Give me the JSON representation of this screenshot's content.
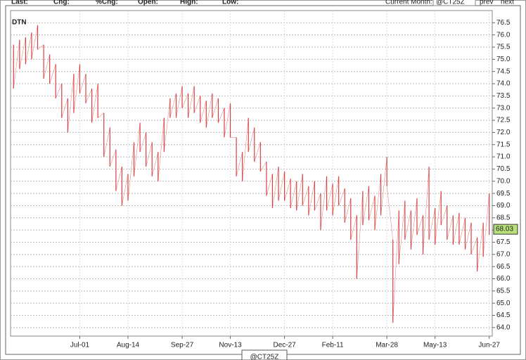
{
  "toolbar": {
    "fields": [
      "Last:",
      "Chg:",
      "%Chg:",
      "Open:",
      "High:",
      "Low:"
    ],
    "current_month": "Current Month:",
    "symbol": "@CT25Z",
    "prev": "prev",
    "next": "next"
  },
  "chart_data": {
    "type": "hilo",
    "logo": "DTN",
    "color": "#d84040",
    "grid": true,
    "categories": [
      null,
      null,
      null,
      null,
      null,
      null,
      null,
      null,
      null,
      null,
      null,
      "Jul-01",
      null,
      null,
      null,
      null,
      null,
      null,
      null,
      "Aug-14",
      null,
      null,
      null,
      null,
      null,
      null,
      null,
      null,
      "Sep-27",
      null,
      null,
      null,
      null,
      null,
      null,
      null,
      "Nov-13",
      null,
      null,
      null,
      null,
      null,
      null,
      null,
      null,
      "Dec-27",
      null,
      null,
      null,
      null,
      null,
      null,
      null,
      "Feb-11",
      null,
      null,
      null,
      null,
      null,
      null,
      null,
      null,
      "Mar-28",
      null,
      null,
      null,
      null,
      null,
      null,
      null,
      "May-13",
      null,
      null,
      null,
      null,
      null,
      null,
      null,
      null,
      "Jun-27"
    ],
    "high": [
      75.6,
      75.8,
      75.9,
      76.1,
      76.4,
      75.6,
      75.2,
      74.8,
      74.0,
      73.4,
      74.4,
      74.8,
      74.4,
      73.8,
      74.0,
      72.8,
      72.2,
      71.3,
      70.6,
      70.3,
      71.6,
      72.4,
      72.0,
      71.6,
      71.2,
      72.6,
      73.4,
      73.6,
      73.9,
      73.6,
      73.9,
      73.5,
      73.3,
      73.6,
      73.4,
      73.0,
      73.2,
      71.8,
      71.2,
      72.6,
      72.2,
      71.6,
      70.8,
      70.3,
      70.6,
      70.4,
      70.1,
      70.0,
      70.3,
      69.8,
      70.0,
      69.5,
      70.2,
      69.9,
      70.2,
      69.7,
      69.3,
      68.6,
      69.6,
      69.8,
      69.4,
      70.3,
      71.0,
      67.6,
      68.8,
      69.2,
      68.8,
      69.3,
      68.6,
      70.6,
      68.9,
      69.6,
      69.0,
      68.6,
      68.7,
      68.5,
      68.3,
      67.7,
      68.3,
      69.5
    ],
    "low": [
      73.8,
      74.6,
      74.8,
      75.0,
      75.4,
      74.2,
      74.0,
      73.4,
      72.6,
      72.0,
      72.8,
      73.6,
      73.2,
      72.4,
      72.6,
      71.0,
      70.6,
      69.6,
      69.0,
      69.2,
      70.2,
      71.2,
      70.6,
      70.2,
      70.0,
      71.2,
      72.6,
      72.6,
      73.0,
      72.6,
      72.8,
      72.4,
      72.2,
      72.6,
      72.4,
      71.8,
      71.8,
      70.2,
      70.0,
      71.2,
      70.8,
      70.4,
      69.4,
      68.9,
      69.2,
      69.2,
      68.9,
      68.8,
      69.0,
      68.6,
      68.8,
      68.0,
      68.8,
      68.6,
      69.0,
      68.3,
      67.6,
      66.0,
      68.2,
      68.4,
      68.0,
      68.6,
      69.8,
      64.2,
      66.6,
      67.6,
      67.2,
      67.8,
      67.0,
      67.6,
      67.4,
      68.2,
      67.6,
      67.4,
      67.4,
      67.2,
      67.0,
      66.3,
      66.9,
      67.8
    ],
    "last": 68.03,
    "ylim": [
      63.65,
      77.0
    ],
    "yticks": [
      {
        "value": 64,
        "label": "64.0"
      },
      {
        "value": 64.5,
        "label": "64.5"
      },
      {
        "value": 65,
        "label": "65.0"
      },
      {
        "value": 65.5,
        "label": "65.5"
      },
      {
        "value": 66,
        "label": "66.0"
      },
      {
        "value": 66.5,
        "label": "66.5"
      },
      {
        "value": 67,
        "label": "67.0"
      },
      {
        "value": 67.5,
        "label": "67.5"
      },
      {
        "value": 68,
        "label": "68.0"
      },
      {
        "value": 68.5,
        "label": "68.5"
      },
      {
        "value": 69,
        "label": "69.0"
      },
      {
        "value": 69.5,
        "label": "69.5"
      },
      {
        "value": 70,
        "label": "70.0"
      },
      {
        "value": 70.5,
        "label": "70.5"
      },
      {
        "value": 71,
        "label": "71.0"
      },
      {
        "value": 71.5,
        "label": "71.5"
      },
      {
        "value": 72,
        "label": "72.0"
      },
      {
        "value": 72.5,
        "label": "72.5"
      },
      {
        "value": 73,
        "label": "73.0"
      },
      {
        "value": 73.5,
        "label": "73.5"
      },
      {
        "value": 74,
        "label": "74.0"
      },
      {
        "value": 74.5,
        "label": "74.5"
      },
      {
        "value": 75,
        "label": "75.0"
      },
      {
        "value": 75.5,
        "label": "75.5"
      },
      {
        "value": 76,
        "label": "76.0"
      },
      {
        "value": 76.5,
        "label": "76.5"
      }
    ]
  }
}
